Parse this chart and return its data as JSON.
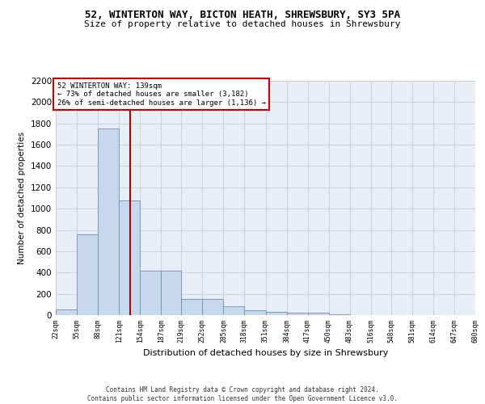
{
  "title_line1": "52, WINTERTON WAY, BICTON HEATH, SHREWSBURY, SY3 5PA",
  "title_line2": "Size of property relative to detached houses in Shrewsbury",
  "xlabel": "Distribution of detached houses by size in Shrewsbury",
  "ylabel": "Number of detached properties",
  "footer_line1": "Contains HM Land Registry data © Crown copyright and database right 2024.",
  "footer_line2": "Contains public sector information licensed under the Open Government Licence v3.0.",
  "annotation_line1": "52 WINTERTON WAY: 139sqm",
  "annotation_line2": "← 73% of detached houses are smaller (3,182)",
  "annotation_line3": "26% of semi-detached houses are larger (1,136) →",
  "bar_color": "#c8d8ec",
  "bar_edge_color": "#7090b8",
  "grid_color": "#c8d0dc",
  "vline_color": "#aa0000",
  "bg_color": "#e8eef5",
  "bin_edges": [
    22,
    55,
    88,
    121,
    154,
    187,
    219,
    252,
    285,
    318,
    351,
    384,
    417,
    450,
    483,
    516,
    548,
    581,
    614,
    647,
    680
  ],
  "bar_heights": [
    55,
    760,
    1750,
    1075,
    420,
    420,
    155,
    155,
    80,
    45,
    30,
    25,
    20,
    5,
    3,
    2,
    1,
    1,
    0,
    0
  ],
  "vline_x": 139,
  "ylim": [
    0,
    2200
  ],
  "yticks": [
    0,
    200,
    400,
    600,
    800,
    1000,
    1200,
    1400,
    1600,
    1800,
    2000,
    2200
  ],
  "xtick_labels": [
    "22sqm",
    "55sqm",
    "88sqm",
    "121sqm",
    "154sqm",
    "187sqm",
    "219sqm",
    "252sqm",
    "285sqm",
    "318sqm",
    "351sqm",
    "384sqm",
    "417sqm",
    "450sqm",
    "483sqm",
    "516sqm",
    "548sqm",
    "581sqm",
    "614sqm",
    "647sqm",
    "680sqm"
  ],
  "annotation_box_color": "#ffffff",
  "annotation_box_edge": "#cc0000",
  "fig_bg": "#ffffff"
}
